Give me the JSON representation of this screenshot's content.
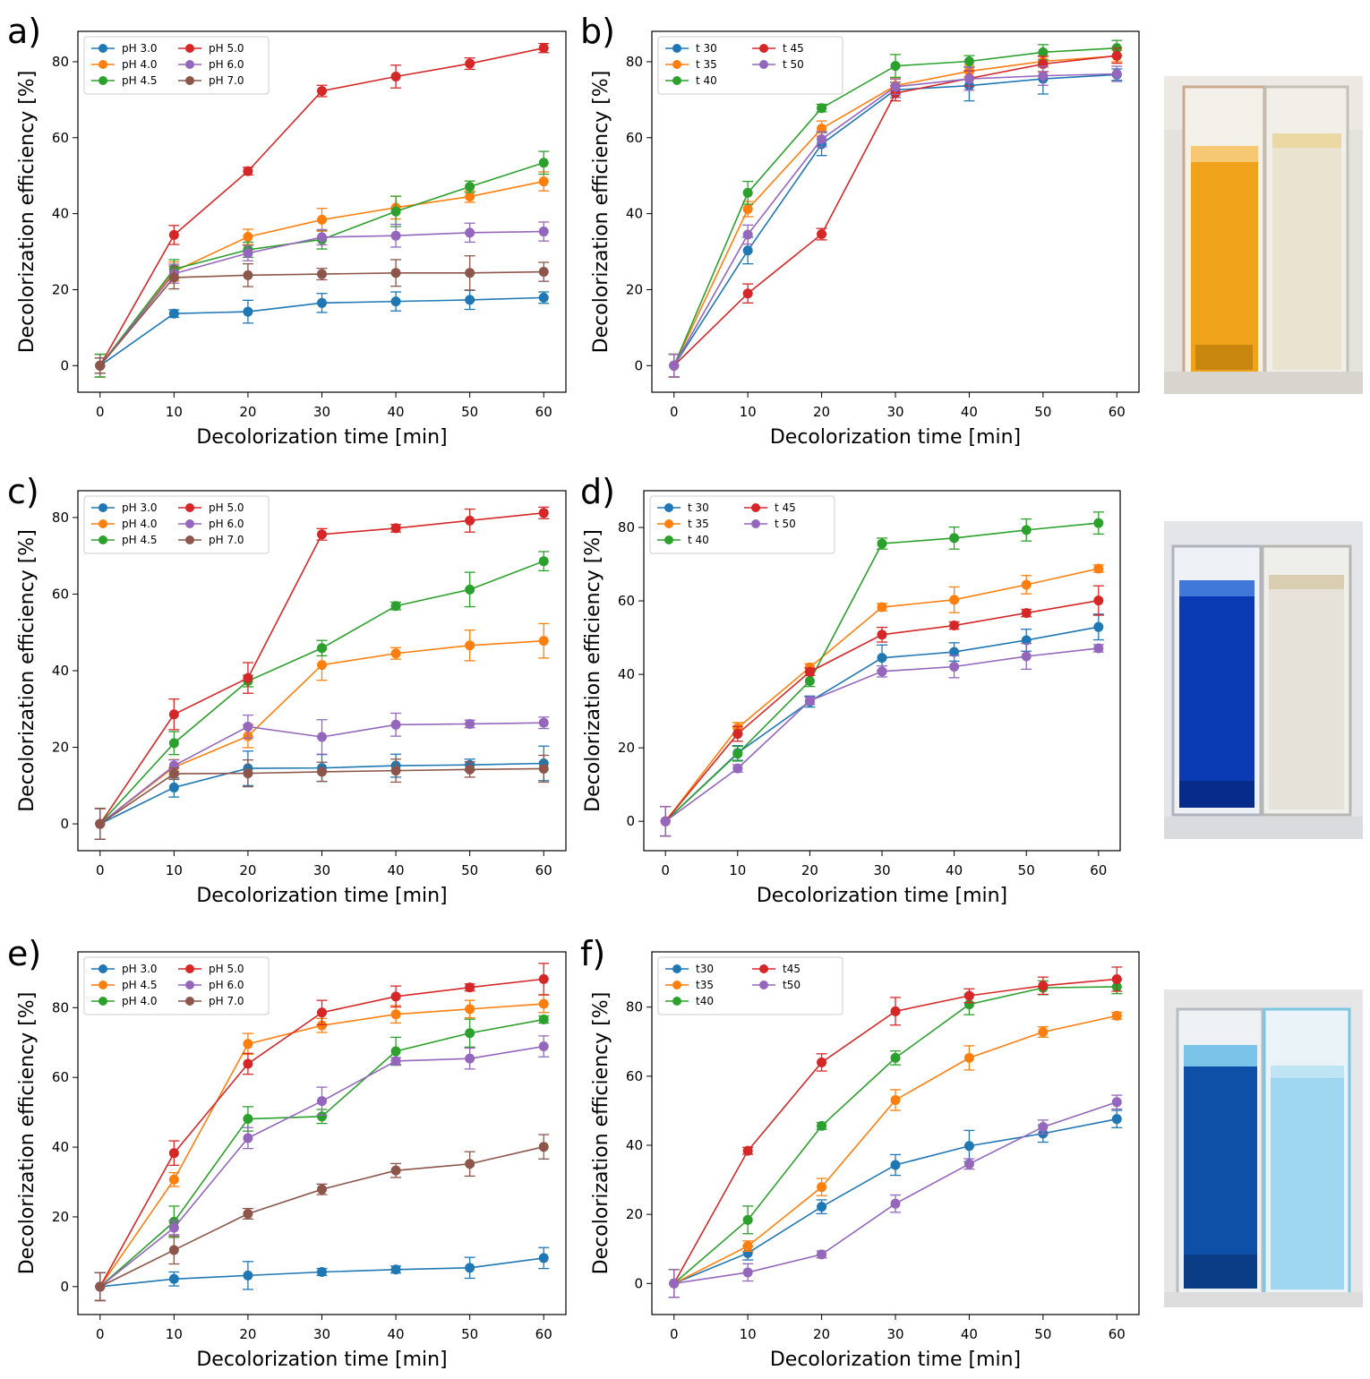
{
  "colors": {
    "c30": "#1f77b4",
    "c35": "#ff7f0e",
    "c40": "#2ca02c",
    "c45": "#d62728",
    "c50": "#9467bd",
    "c70": "#8c564b"
  },
  "chart_data": [
    {
      "type": "line",
      "panel_label": "a)",
      "xlabel": "Decolorization time [min]",
      "ylabel": "Decolorization efficiency [%]",
      "x": [
        0,
        10,
        20,
        30,
        40,
        50,
        60
      ],
      "xlim": [
        -3,
        63
      ],
      "ylim": [
        -7,
        88
      ],
      "xticks": [
        0,
        10,
        20,
        30,
        40,
        50,
        60
      ],
      "yticks": [
        0,
        20,
        40,
        60,
        80
      ],
      "legend_position": "top-left",
      "series": [
        {
          "name": "pH 3.0",
          "color": "c30",
          "values": [
            0,
            13.7,
            14.2,
            16.5,
            16.9,
            17.3,
            17.9
          ],
          "errors": [
            3,
            1,
            3,
            2.5,
            2.5,
            2.5,
            1.5
          ]
        },
        {
          "name": "pH 4.0",
          "color": "c35",
          "values": [
            0,
            24.8,
            33.9,
            38.4,
            41.6,
            44.5,
            48.5
          ],
          "errors": [
            3,
            2.5,
            2,
            3,
            3,
            1.5,
            2.5
          ]
        },
        {
          "name": "pH 4.5",
          "color": "c40",
          "values": [
            0,
            25.4,
            30.5,
            33.2,
            40.6,
            47.1,
            53.4
          ],
          "errors": [
            3,
            2.5,
            2,
            2.5,
            4,
            1.5,
            3
          ]
        },
        {
          "name": "pH 5.0",
          "color": "c45",
          "values": [
            0,
            34.4,
            51.2,
            72.3,
            76.1,
            79.5,
            83.6
          ],
          "errors": [
            2,
            2.5,
            1,
            1.5,
            3,
            1.5,
            1.2
          ]
        },
        {
          "name": "pH 6.0",
          "color": "c50",
          "values": [
            0,
            24.2,
            29.6,
            33.8,
            34.2,
            35.0,
            35.3
          ],
          "errors": [
            2,
            2.5,
            2,
            2,
            3,
            2.5,
            2.5
          ]
        },
        {
          "name": "pH 7.0",
          "color": "c70",
          "values": [
            0,
            23.2,
            23.8,
            24.1,
            24.4,
            24.4,
            24.7
          ],
          "errors": [
            2,
            3,
            3,
            1.5,
            3.5,
            4.5,
            2.5
          ]
        }
      ]
    },
    {
      "type": "line",
      "panel_label": "b)",
      "xlabel": "Decolorization time [min]",
      "ylabel": "Decolorization efficiency [%]",
      "x": [
        0,
        10,
        20,
        30,
        40,
        50,
        60
      ],
      "xlim": [
        -3,
        63
      ],
      "ylim": [
        -7,
        88
      ],
      "xticks": [
        0,
        10,
        20,
        30,
        40,
        50,
        60
      ],
      "yticks": [
        0,
        20,
        40,
        60,
        80
      ],
      "legend_position": "top-left",
      "series": [
        {
          "name": "t 30",
          "color": "c30",
          "values": [
            0,
            30.3,
            58.3,
            72.6,
            73.7,
            75.5,
            76.6
          ],
          "errors": [
            3,
            3.5,
            3,
            2,
            4,
            4,
            1.5
          ]
        },
        {
          "name": "t 35",
          "color": "c35",
          "values": [
            0,
            41.2,
            62.4,
            73.7,
            77.5,
            80.1,
            81.5
          ],
          "errors": [
            3,
            2,
            2,
            2,
            1.5,
            1.5,
            1.5
          ]
        },
        {
          "name": "t 40",
          "color": "c40",
          "values": [
            0,
            45.5,
            67.8,
            78.9,
            80.1,
            82.5,
            83.6
          ],
          "errors": [
            3,
            3,
            1,
            3,
            1.5,
            2,
            2
          ]
        },
        {
          "name": "t 45",
          "color": "c45",
          "values": [
            0,
            19.0,
            34.6,
            71.7,
            75.6,
            79.4,
            81.6
          ],
          "errors": [
            3,
            2.5,
            1.5,
            2,
            2,
            2,
            2
          ]
        },
        {
          "name": "t 50",
          "color": "c50",
          "values": [
            0,
            34.5,
            59.6,
            73.4,
            75.5,
            76.3,
            76.8
          ],
          "errors": [
            3,
            2.5,
            2,
            2,
            3,
            2.5,
            2
          ]
        }
      ]
    },
    {
      "type": "line",
      "panel_label": "c)",
      "xlabel": "Decolorization time [min]",
      "ylabel": "Decolorization efficiency [%]",
      "x": [
        0,
        10,
        20,
        30,
        40,
        50,
        60
      ],
      "xlim": [
        -3,
        63
      ],
      "ylim": [
        -7,
        87
      ],
      "xticks": [
        0,
        10,
        20,
        30,
        40,
        50,
        60
      ],
      "yticks": [
        0,
        20,
        40,
        60,
        80
      ],
      "legend_position": "top-left",
      "series": [
        {
          "name": "pH 3.0",
          "color": "c30",
          "values": [
            0,
            9.5,
            14.5,
            14.6,
            15.2,
            15.4,
            15.8
          ],
          "errors": [
            4,
            2.5,
            4.5,
            3.5,
            3,
            1.5,
            4.5
          ]
        },
        {
          "name": "pH 4.0",
          "color": "c35",
          "values": [
            0,
            14.8,
            22.9,
            41.5,
            44.5,
            46.6,
            47.8
          ],
          "errors": [
            4,
            2,
            3,
            4,
            1.5,
            4,
            4.5
          ]
        },
        {
          "name": "pH 4.5",
          "color": "c40",
          "values": [
            0,
            21.1,
            37.3,
            45.9,
            56.9,
            61.2,
            68.6
          ],
          "errors": [
            4,
            3,
            1.5,
            2,
            1,
            4.5,
            2.5
          ]
        },
        {
          "name": "pH 5.0",
          "color": "c45",
          "values": [
            0,
            28.6,
            38.1,
            75.6,
            77.2,
            79.2,
            81.2
          ],
          "errors": [
            4,
            4,
            4,
            1.5,
            1,
            3,
            1.5
          ]
        },
        {
          "name": "pH 6.0",
          "color": "c50",
          "values": [
            0,
            15.2,
            25.4,
            22.7,
            25.9,
            26.1,
            26.4
          ],
          "errors": [
            4,
            1.5,
            3,
            4.5,
            3,
            1,
            1.5
          ]
        },
        {
          "name": "pH 7.0",
          "color": "c70",
          "values": [
            0,
            13.1,
            13.2,
            13.6,
            13.9,
            14.2,
            14.4
          ],
          "errors": [
            4,
            1.5,
            3.5,
            2.5,
            3,
            2,
            3.5
          ]
        }
      ]
    },
    {
      "type": "line",
      "panel_label": "d)",
      "xlabel": "Decolorization time [min]",
      "ylabel": "Decolorization efficiency [%]",
      "x": [
        0,
        10,
        20,
        30,
        40,
        50,
        60
      ],
      "xlim": [
        -3,
        63
      ],
      "ylim": [
        -8,
        90
      ],
      "xticks": [
        0,
        10,
        20,
        30,
        40,
        50,
        60
      ],
      "yticks": [
        0,
        20,
        40,
        60,
        80
      ],
      "legend_position": "top-left",
      "series": [
        {
          "name": "t 30",
          "color": "c30",
          "values": [
            0,
            18.6,
            32.6,
            44.5,
            46.1,
            49.3,
            52.9
          ],
          "errors": [
            4,
            2,
            1.5,
            3.5,
            2.5,
            3,
            3.5
          ]
        },
        {
          "name": "t 35",
          "color": "c35",
          "values": [
            0,
            25.4,
            41.9,
            58.3,
            60.3,
            64.4,
            68.8
          ],
          "errors": [
            4,
            1.5,
            1,
            1,
            3.5,
            2.5,
            1
          ]
        },
        {
          "name": "t 40",
          "color": "c40",
          "values": [
            0,
            18.4,
            38.2,
            75.6,
            77.1,
            79.3,
            81.2
          ],
          "errors": [
            4,
            2,
            1.5,
            1.5,
            3,
            3,
            3
          ]
        },
        {
          "name": "t 45",
          "color": "c45",
          "values": [
            0,
            23.8,
            40.7,
            50.8,
            53.3,
            56.7,
            60.1
          ],
          "errors": [
            4,
            2,
            1,
            2,
            1,
            1,
            4
          ]
        },
        {
          "name": "t 50",
          "color": "c50",
          "values": [
            0,
            14.4,
            32.8,
            40.8,
            42.1,
            44.9,
            47.1
          ],
          "errors": [
            4,
            1,
            1,
            1.5,
            3,
            3.5,
            1
          ]
        }
      ]
    },
    {
      "type": "line",
      "panel_label": "e)",
      "xlabel": "Decolorization time [min]",
      "ylabel": "Decolorization efficiency [%]",
      "x": [
        0,
        10,
        20,
        30,
        40,
        50,
        60
      ],
      "xlim": [
        -3,
        63
      ],
      "ylim": [
        -8,
        96
      ],
      "xticks": [
        0,
        10,
        20,
        30,
        40,
        50,
        60
      ],
      "yticks": [
        0,
        20,
        40,
        60,
        80
      ],
      "legend_position": "top-left",
      "series": [
        {
          "name": "pH 3.0",
          "color": "c30",
          "values": [
            0,
            2.2,
            3.2,
            4.2,
            4.9,
            5.4,
            8.2
          ],
          "errors": [
            4,
            2,
            4,
            1,
            1,
            3,
            3
          ]
        },
        {
          "name": "pH 4.5",
          "color": "c35",
          "values": [
            0,
            30.7,
            69.6,
            74.9,
            78.1,
            79.6,
            81.1
          ],
          "errors": [
            4,
            2,
            3,
            2,
            2.5,
            2.5,
            2.5
          ]
        },
        {
          "name": "pH 4.0",
          "color": "c40",
          "values": [
            0,
            18.6,
            48.1,
            48.8,
            67.5,
            72.7,
            76.6
          ],
          "errors": [
            4,
            4.5,
            3.5,
            2,
            4,
            4,
            1
          ]
        },
        {
          "name": "pH 5.0",
          "color": "c45",
          "values": [
            0,
            38.3,
            63.9,
            78.6,
            83.2,
            85.8,
            88.2
          ],
          "errors": [
            4,
            3.5,
            3,
            3.5,
            3,
            1,
            4.5
          ]
        },
        {
          "name": "pH 6.0",
          "color": "c50",
          "values": [
            0,
            16.9,
            42.6,
            53.2,
            64.7,
            65.4,
            68.9
          ],
          "errors": [
            4,
            2,
            3,
            4,
            1,
            3,
            3
          ]
        },
        {
          "name": "pH 7.0",
          "color": "c70",
          "values": [
            0,
            10.5,
            20.9,
            27.9,
            33.3,
            35.2,
            40.1
          ],
          "errors": [
            4,
            4,
            1.5,
            1.5,
            2,
            3.5,
            3.5
          ]
        }
      ]
    },
    {
      "type": "line",
      "panel_label": "f)",
      "xlabel": "Decolorization time [min]",
      "ylabel": "Decolorization efficiency [%]",
      "x": [
        0,
        10,
        20,
        30,
        40,
        50,
        60
      ],
      "xlim": [
        -3,
        63
      ],
      "ylim": [
        -9,
        96
      ],
      "xticks": [
        0,
        10,
        20,
        30,
        40,
        50,
        60
      ],
      "yticks": [
        0,
        20,
        40,
        60,
        80
      ],
      "legend_position": "top-left",
      "series": [
        {
          "name": "t30",
          "color": "c30",
          "values": [
            0,
            8.8,
            22.2,
            34.3,
            39.8,
            43.4,
            47.6
          ],
          "errors": [
            4,
            2,
            2,
            3,
            4.5,
            2.5,
            2.5
          ]
        },
        {
          "name": "t35",
          "color": "c35",
          "values": [
            0,
            10.8,
            27.9,
            53.1,
            65.3,
            72.8,
            77.5
          ],
          "errors": [
            4,
            1.5,
            2.5,
            3,
            3.5,
            1.5,
            1
          ]
        },
        {
          "name": "t40",
          "color": "c40",
          "values": [
            0,
            18.4,
            45.6,
            65.3,
            80.8,
            85.6,
            85.9
          ],
          "errors": [
            4,
            4,
            1,
            2,
            3,
            2,
            2
          ]
        },
        {
          "name": "t45",
          "color": "c45",
          "values": [
            0,
            38.4,
            64.0,
            78.8,
            83.3,
            86.2,
            88.1
          ],
          "errors": [
            4,
            1,
            2.5,
            4,
            2,
            2.5,
            3.5
          ]
        },
        {
          "name": "t50",
          "color": "c50",
          "values": [
            0,
            3.2,
            8.4,
            23.1,
            34.6,
            45.3,
            52.5
          ],
          "errors": [
            4,
            2.5,
            1,
            2.5,
            1.5,
            2,
            2
          ]
        }
      ]
    }
  ]
}
